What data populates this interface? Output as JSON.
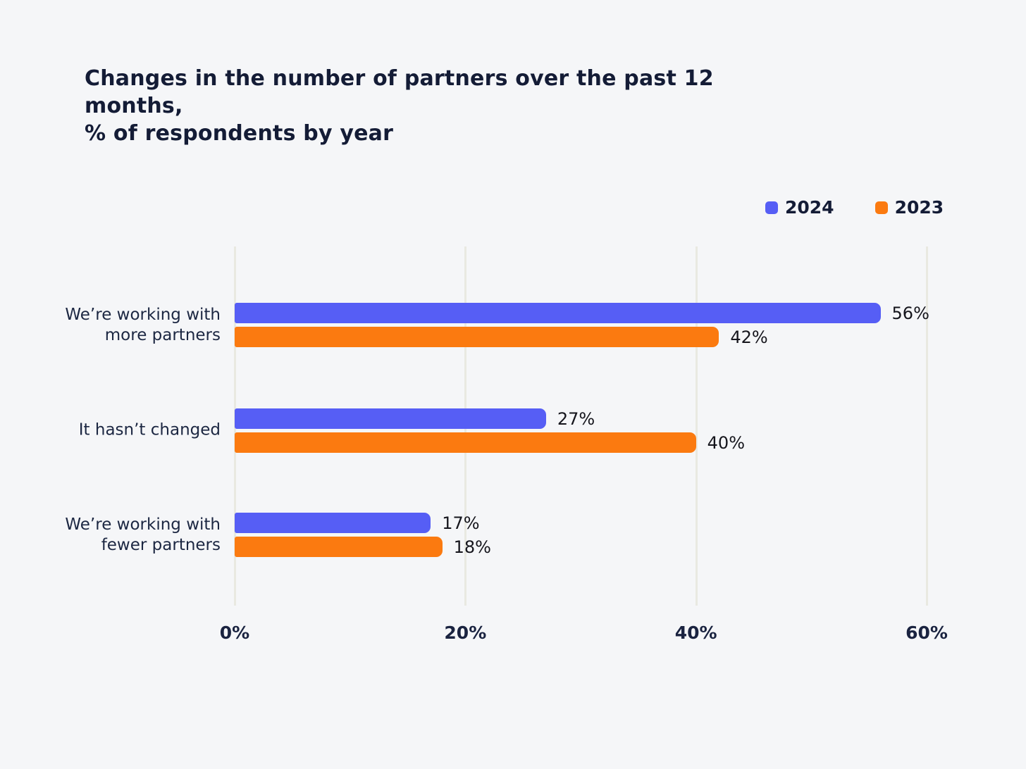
{
  "page": {
    "background": "#f5f6f8"
  },
  "chart": {
    "title": "Changes in the number of partners over the past 12 months,\n% of respondents by year",
    "legend": [
      {
        "label": "2024",
        "color": "#565EF5"
      },
      {
        "label": "2023",
        "color": "#FB7A10"
      }
    ]
  },
  "chart_data": {
    "type": "bar",
    "orientation": "horizontal",
    "title": "Changes in the number of partners over the past 12 months, % of respondents by year",
    "categories": [
      "We’re working with\nmore partners",
      "It hasn’t changed",
      "We’re working with\nfewer partners"
    ],
    "series": [
      {
        "name": "2024",
        "color": "#565EF5",
        "values": [
          56,
          27,
          17
        ],
        "labels": [
          "56%",
          "27%",
          "17%"
        ]
      },
      {
        "name": "2023",
        "color": "#FB7A10",
        "values": [
          42,
          40,
          18
        ],
        "labels": [
          "42%",
          "40%",
          "18%"
        ]
      }
    ],
    "xlabel": "",
    "ylabel": "",
    "xlim": [
      0,
      60
    ],
    "x_ticks": [
      "0%",
      "20%",
      "40%",
      "60%"
    ],
    "x_tick_values": [
      0,
      20,
      40,
      60
    ],
    "grid": "vertical-gridlines",
    "gridline_color": "#e9e9e1",
    "legend_position": "top-right",
    "value_label_color": "#15151c",
    "text_color": "#141c36"
  }
}
